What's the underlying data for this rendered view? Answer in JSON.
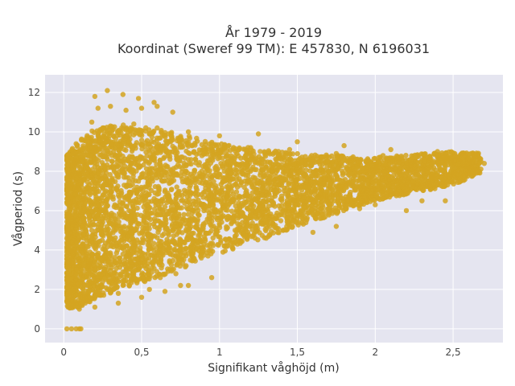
{
  "chart_data": {
    "type": "scatter",
    "title_line1": "År 1979 - 2019",
    "title_line2": "Koordinat (Sweref 99 TM): E 457830, N 6196031",
    "xlabel": "Signifikant våghöjd (m)",
    "ylabel": "Vågperiod (s)",
    "xlim": [
      -0.12,
      2.82
    ],
    "ylim": [
      -0.7,
      12.9
    ],
    "x_ticks": [
      0,
      0.5,
      1,
      1.5,
      2,
      2.5
    ],
    "x_tick_labels": [
      "0",
      "0,5",
      "1",
      "1,5",
      "2",
      "2,5"
    ],
    "y_ticks": [
      0,
      2,
      4,
      6,
      8,
      10,
      12
    ],
    "y_tick_labels": [
      "0",
      "2",
      "4",
      "6",
      "8",
      "10",
      "12"
    ],
    "grid": true,
    "marker_color": "#D4A421",
    "background_color": "#E5E5F0",
    "series": [
      {
        "x": [
          0.02,
          0.05,
          0.08,
          0.1,
          0.11,
          0.02,
          0.03,
          0.05,
          0.07,
          0.1,
          0.03,
          0.05,
          0.07,
          0.09,
          0.12,
          0.15,
          0.04,
          0.06,
          0.09,
          0.12,
          0.16,
          0.2,
          0.05,
          0.08,
          0.12,
          0.16,
          0.22,
          0.28,
          0.06,
          0.1,
          0.15,
          0.2,
          0.27,
          0.35,
          0.05,
          0.09,
          0.14,
          0.2,
          0.28,
          0.38,
          0.48,
          0.06,
          0.11,
          0.18,
          0.26,
          0.36,
          0.48,
          0.6,
          0.07,
          0.13,
          0.22,
          0.32,
          0.45,
          0.6,
          0.75,
          0.9,
          0.08,
          0.15,
          0.25,
          0.38,
          0.52,
          0.7,
          0.9,
          1.1,
          0.1,
          0.18,
          0.3,
          0.45,
          0.62,
          0.85,
          1.1,
          1.35,
          0.12,
          0.22,
          0.35,
          0.52,
          0.72,
          0.98,
          1.3,
          1.6,
          1.9,
          0.15,
          0.28,
          0.42,
          0.62,
          0.85,
          1.15,
          1.5,
          1.85,
          2.1,
          0.18,
          0.32,
          0.5,
          0.72,
          1.0,
          1.35,
          1.75,
          2.1,
          2.4,
          0.2,
          0.35,
          0.55,
          0.8,
          1.1,
          1.5,
          1.95,
          2.3,
          2.55,
          0.22,
          0.38,
          0.6,
          0.9,
          1.25,
          1.7,
          2.2,
          2.55,
          2.7,
          0.25,
          0.4,
          0.55,
          0.7,
          0.9,
          1.2,
          1.6,
          2.1,
          2.45,
          2.65,
          0.22,
          0.3,
          0.4,
          0.5,
          0.6,
          0.7,
          0.2,
          0.28,
          0.38,
          0.48,
          0.58,
          0.18,
          0.3,
          0.45,
          0.6,
          0.8,
          1.0,
          1.25,
          1.5,
          1.8,
          2.1,
          2.4,
          0.25,
          0.4,
          0.55,
          0.75,
          0.95,
          1.2,
          1.45,
          1.75,
          2.05,
          2.35,
          2.6,
          0.3,
          0.5,
          0.65,
          0.9,
          1.15,
          1.4,
          1.7,
          2.0,
          2.3,
          0.35,
          0.55,
          0.85,
          1.05,
          1.3,
          1.6,
          2.2,
          0.5,
          0.75,
          1.1,
          1.75,
          2.45,
          0.15,
          0.22,
          0.32,
          0.42,
          0.52,
          0.62,
          0.72,
          0.2,
          0.35,
          0.55,
          0.75,
          0.95,
          0.1,
          0.2,
          0.35,
          0.5,
          0.65,
          0.8
        ],
        "y": [
          0,
          0,
          0,
          0,
          0,
          1.4,
          1.3,
          1.2,
          1.2,
          1.1,
          1.8,
          1.5,
          1.4,
          1.3,
          1.3,
          1.4,
          2.5,
          2.0,
          1.7,
          1.6,
          1.6,
          1.7,
          3.5,
          3.0,
          2.5,
          2.2,
          2.0,
          2.0,
          4.5,
          3.8,
          3.2,
          2.8,
          2.5,
          2.4,
          5.5,
          4.8,
          4.0,
          3.4,
          3.0,
          2.9,
          3.0,
          6.5,
          5.8,
          5.0,
          4.2,
          3.6,
          3.3,
          3.4,
          7.2,
          6.6,
          5.8,
          5.0,
          4.4,
          3.9,
          3.8,
          4.0,
          7.8,
          7.2,
          6.5,
          5.8,
          5.1,
          4.5,
          4.3,
          4.6,
          8.2,
          7.8,
          7.2,
          6.5,
          5.8,
          5.2,
          5.0,
          5.2,
          8.5,
          8.2,
          7.8,
          7.2,
          6.6,
          6.0,
          5.7,
          5.8,
          6.1,
          8.8,
          8.6,
          8.2,
          7.7,
          7.2,
          6.7,
          6.3,
          6.5,
          6.8,
          9.2,
          9.0,
          8.7,
          8.2,
          7.7,
          7.2,
          6.9,
          7.0,
          7.3,
          9.5,
          9.3,
          9.0,
          8.6,
          8.1,
          7.6,
          7.4,
          7.6,
          7.9,
          9.8,
          9.6,
          9.3,
          8.9,
          8.4,
          8.0,
          7.9,
          8.1,
          8.4,
          10.2,
          10.1,
          9.9,
          9.6,
          9.2,
          8.8,
          8.6,
          8.5,
          8.7,
          8.8,
          11.2,
          11.3,
          11.1,
          11.2,
          11.3,
          11.0,
          11.8,
          12.1,
          11.9,
          11.7,
          11.5,
          10.5,
          10.3,
          10.4,
          10.2,
          10.0,
          9.8,
          9.9,
          9.5,
          9.3,
          9.1,
          9.0,
          9.6,
          9.8,
          9.9,
          9.7,
          9.4,
          9.2,
          9.1,
          8.9,
          8.8,
          8.6,
          8.7,
          7.0,
          6.6,
          6.2,
          6.0,
          5.8,
          5.9,
          6.1,
          6.3,
          6.5,
          5.2,
          4.8,
          4.5,
          4.4,
          4.6,
          4.9,
          6.0,
          3.7,
          3.9,
          4.4,
          5.2,
          6.5,
          2.2,
          2.1,
          2.0,
          2.2,
          2.4,
          2.6,
          2.8,
          1.6,
          1.8,
          2.0,
          2.2,
          2.6,
          1.0,
          1.1,
          1.3,
          1.6,
          1.9,
          2.2
        ],
        "density_model": {
          "upper_envelope": [
            [
              0.0,
              8.6
            ],
            [
              0.1,
              9.6
            ],
            [
              0.2,
              10.2
            ],
            [
              0.4,
              10.4
            ],
            [
              0.7,
              10.0
            ],
            [
              1.0,
              9.4
            ],
            [
              1.5,
              8.9
            ],
            [
              2.0,
              8.7
            ],
            [
              2.5,
              9.0
            ],
            [
              2.7,
              8.9
            ]
          ],
          "lower_envelope": [
            [
              0.0,
              1.0
            ],
            [
              0.1,
              1.1
            ],
            [
              0.2,
              1.5
            ],
            [
              0.4,
              2.1
            ],
            [
              0.7,
              2.9
            ],
            [
              1.0,
              3.8
            ],
            [
              1.5,
              5.2
            ],
            [
              2.0,
              6.5
            ],
            [
              2.5,
              7.3
            ],
            [
              2.7,
              8.0
            ]
          ]
        }
      }
    ]
  }
}
